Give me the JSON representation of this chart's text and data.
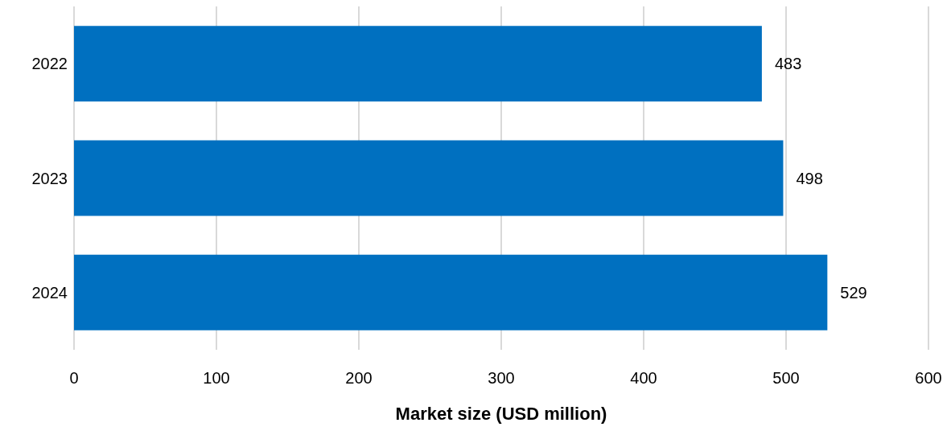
{
  "chart_data": {
    "type": "bar",
    "orientation": "horizontal",
    "xlabel": "Market size (USD million)",
    "categories": [
      "2022",
      "2023",
      "2024"
    ],
    "values": [
      483,
      498,
      529
    ],
    "color": "#0070c0",
    "xlim": [
      0,
      600
    ],
    "xticks": [
      0,
      100,
      200,
      300,
      400,
      500,
      600
    ],
    "grid": "x",
    "data_labels": true
  }
}
